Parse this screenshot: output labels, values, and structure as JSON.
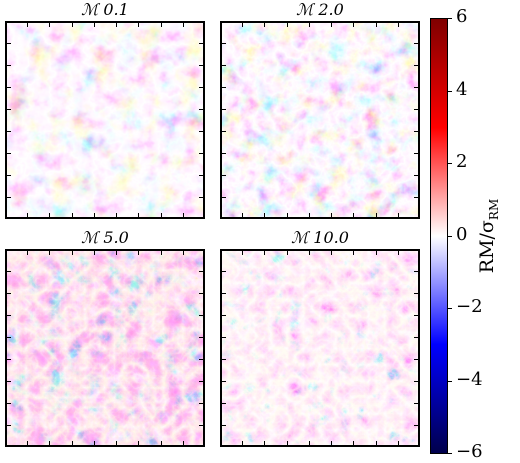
{
  "figure": {
    "panels": [
      {
        "title": "ℳ 0.1",
        "mach": 0.1
      },
      {
        "title": "ℳ 2.0",
        "mach": 2.0
      },
      {
        "title": "ℳ 5.0",
        "mach": 5.0
      },
      {
        "title": "ℳ 10.0",
        "mach": 10.0
      }
    ],
    "colorbar": {
      "label_main": "RM/σ",
      "label_sub": "RM",
      "ticks": [
        "6",
        "4",
        "2",
        "0",
        "−2",
        "−4",
        "−6"
      ],
      "range": [
        -6,
        6
      ],
      "colormap": "seismic",
      "colors": {
        "high": "#7f0000",
        "mid_high": "#ff0000",
        "center": "#ffffff",
        "mid_low": "#0000ff",
        "low": "#00004c"
      }
    }
  }
}
